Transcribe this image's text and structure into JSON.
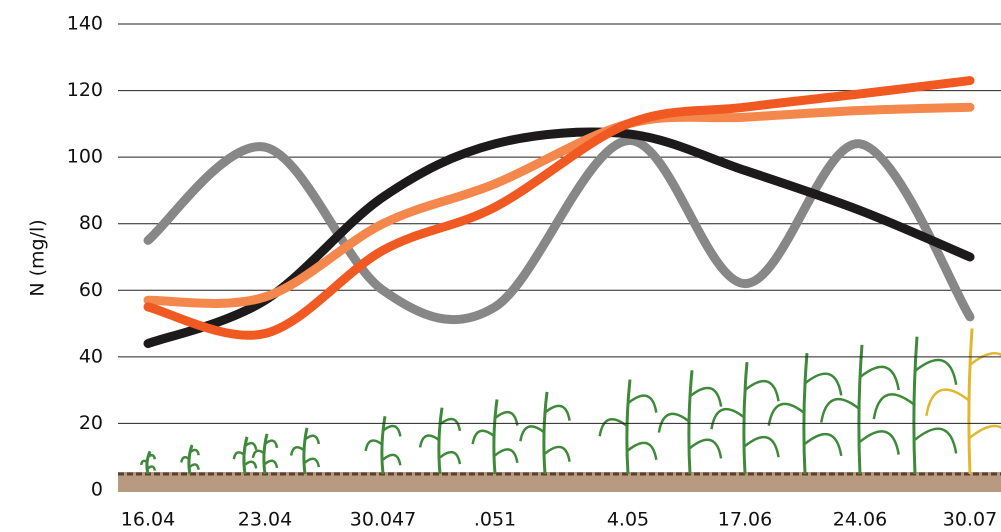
{
  "chart_data": {
    "type": "line",
    "y_label": "N (mg/l)",
    "categories": [
      "16.04",
      "23.04",
      "30.047",
      ".051",
      "4.05",
      "17.06",
      "24.06",
      "30.07"
    ],
    "series": [
      {
        "color": "#878787",
        "values": [
          75,
          103,
          60,
          55,
          105,
          62,
          104,
          52
        ]
      },
      {
        "color": "#1c1a1a",
        "values": [
          44,
          57,
          88,
          104,
          107,
          96,
          84,
          70
        ]
      },
      {
        "color": "#f4874b",
        "values": [
          57,
          58,
          80,
          92,
          110,
          112,
          114,
          115
        ]
      },
      {
        "color": "#f05a22",
        "values": [
          55,
          47,
          72,
          85,
          110,
          115,
          119,
          123
        ]
      }
    ],
    "ylim": [
      0,
      140
    ],
    "yticks": [
      0,
      20,
      40,
      60,
      80,
      100,
      120,
      140
    ],
    "grid": true
  }
}
